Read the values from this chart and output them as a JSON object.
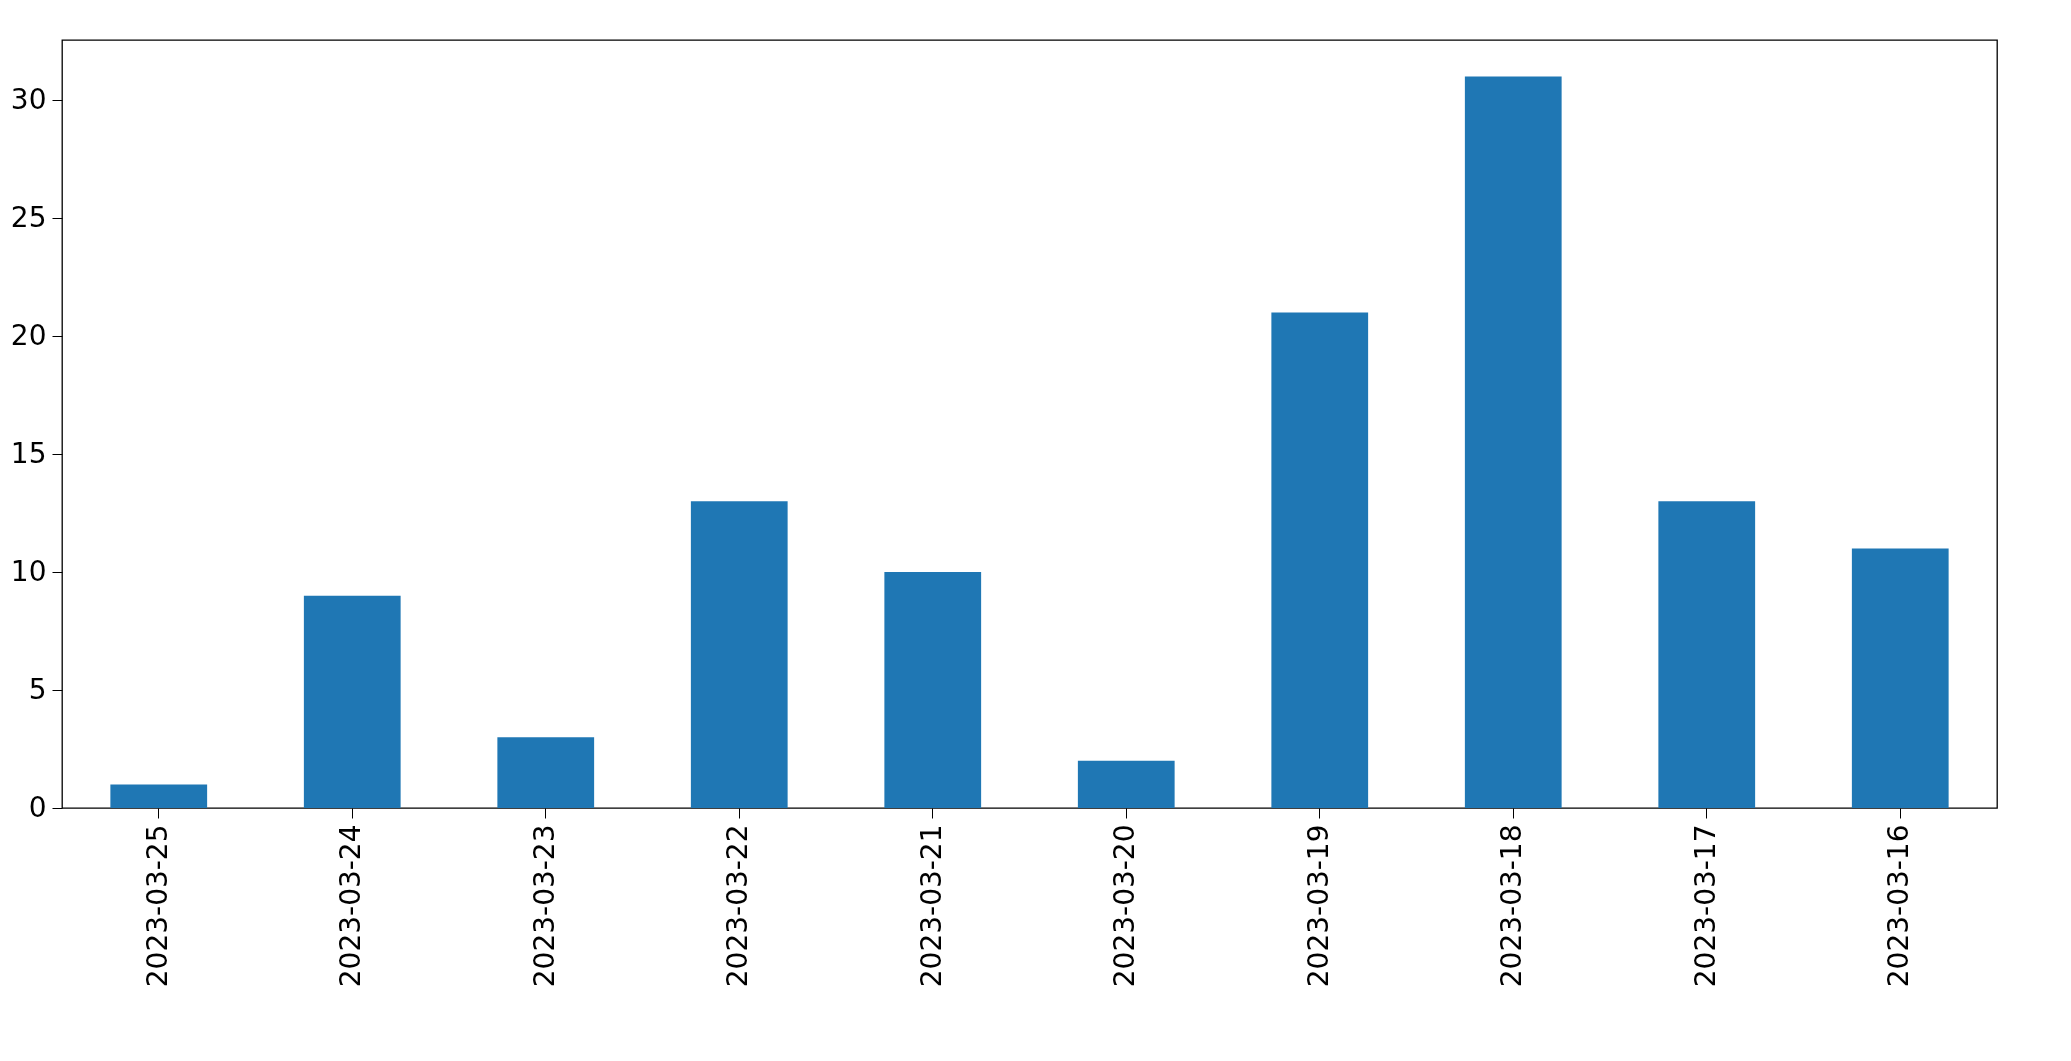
{
  "chart_data": {
    "type": "bar",
    "categories": [
      "2023-03-25",
      "2023-03-24",
      "2023-03-23",
      "2023-03-22",
      "2023-03-21",
      "2023-03-20",
      "2023-03-19",
      "2023-03-18",
      "2023-03-17",
      "2023-03-16"
    ],
    "values": [
      1,
      9,
      3,
      13,
      10,
      2,
      21,
      31,
      13,
      11
    ],
    "color": "#1f77b4",
    "ylim": [
      0,
      32.55
    ],
    "yticks": [
      0,
      5,
      10,
      15,
      20,
      25,
      30
    ],
    "grid": false
  }
}
